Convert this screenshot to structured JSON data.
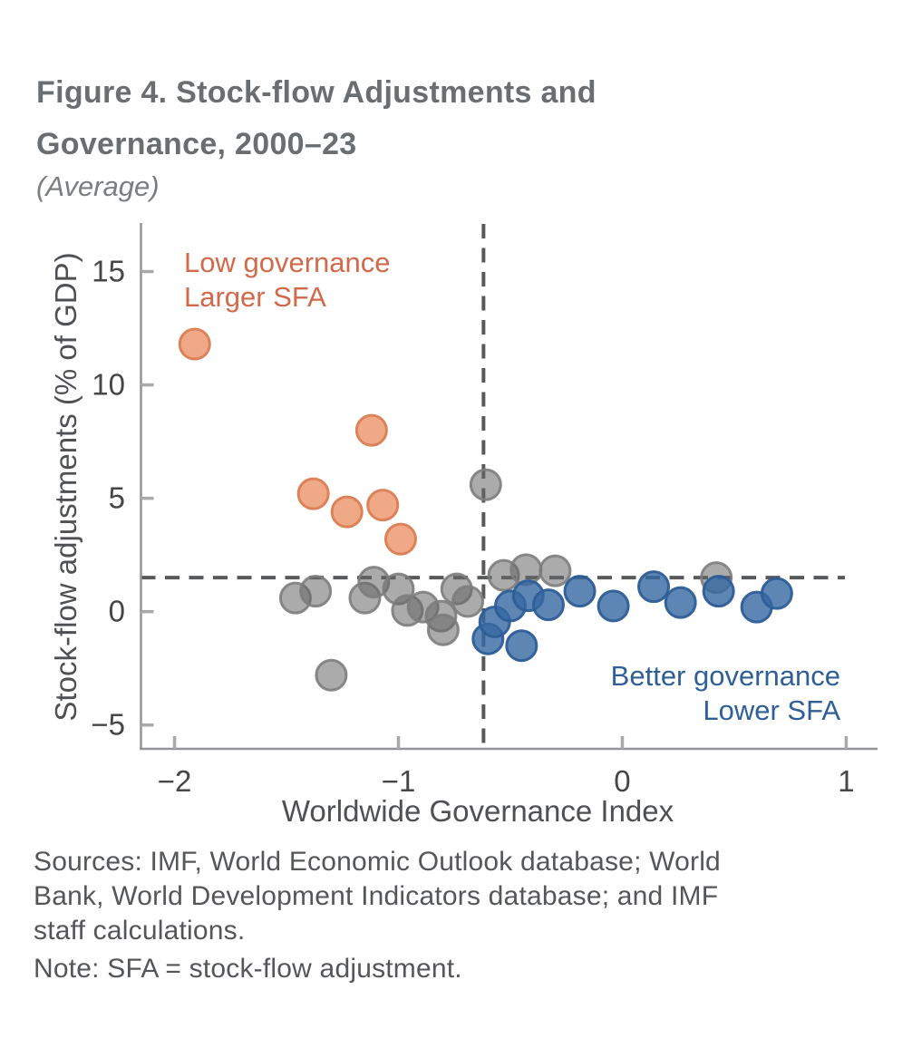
{
  "page": {
    "title_lines": [
      "Figure 4. Stock-flow Adjustments and",
      "Governance, 2000–23"
    ],
    "subtitle": "(Average)",
    "sources": "Sources: IMF, World Economic Outlook database; World Bank, World Development Indicators database; and IMF staff calculations.",
    "note": "Note: SFA = stock-flow adjustment."
  },
  "chart_data": {
    "type": "scatter",
    "title": "Figure 4. Stock-flow Adjustments and Governance, 2000–23",
    "subtitle": "(Average)",
    "xlabel": "Worldwide Governance Index",
    "ylabel": "Stock-flow adjustments (% of GDP)",
    "xlim": [
      -2.15,
      1.14
    ],
    "ylim": [
      -6.05,
      17.1
    ],
    "x_ticks": [
      -2,
      -1,
      0,
      1
    ],
    "y_ticks": [
      15,
      10,
      5,
      0,
      -5
    ],
    "grid": false,
    "reference_lines": {
      "vertical_x": -0.62,
      "horizontal_y": 1.5
    },
    "annotations": [
      {
        "name": "low-governance-label",
        "lines": [
          "Low governance",
          "Larger SFA"
        ],
        "color": "#d2694a"
      },
      {
        "name": "better-governance-label",
        "lines": [
          "Better governance",
          "Lower SFA"
        ],
        "color": "#2f5f97"
      }
    ],
    "series": [
      {
        "name": "neutral-gray",
        "fill": "#666666",
        "stroke": "#7d7d7d",
        "fill_opacity": 0.55,
        "stroke_opacity": 0.9,
        "points": [
          [
            -1.46,
            0.6
          ],
          [
            -1.37,
            0.9
          ],
          [
            -1.3,
            -2.8
          ],
          [
            -1.15,
            0.6
          ],
          [
            -1.11,
            1.3
          ],
          [
            -1.0,
            1.0
          ],
          [
            -0.96,
            0.05
          ],
          [
            -0.89,
            0.2
          ],
          [
            -0.81,
            -0.2
          ],
          [
            -0.8,
            -0.8
          ],
          [
            -0.74,
            1.0
          ],
          [
            -0.69,
            0.45
          ],
          [
            -0.61,
            5.6
          ],
          [
            -0.53,
            1.6
          ],
          [
            -0.43,
            1.85
          ],
          [
            -0.3,
            1.8
          ],
          [
            0.42,
            1.5
          ]
        ]
      },
      {
        "name": "low-governance-orange",
        "fill": "#efa27d",
        "stroke": "#dd8258",
        "fill_opacity": 0.93,
        "stroke_opacity": 1,
        "points": [
          [
            -1.91,
            11.8
          ],
          [
            -1.38,
            5.2
          ],
          [
            -1.23,
            4.4
          ],
          [
            -1.12,
            8.0
          ],
          [
            -1.07,
            4.7
          ],
          [
            -0.99,
            3.2
          ]
        ]
      },
      {
        "name": "better-governance-blue",
        "fill": "#3668a3",
        "stroke": "#2d5e97",
        "fill_opacity": 0.8,
        "stroke_opacity": 0.95,
        "points": [
          [
            -0.6,
            -1.2
          ],
          [
            -0.57,
            -0.45
          ],
          [
            -0.5,
            0.25
          ],
          [
            -0.45,
            -1.5
          ],
          [
            -0.42,
            0.7
          ],
          [
            -0.33,
            0.3
          ],
          [
            -0.19,
            0.9
          ],
          [
            -0.04,
            0.25
          ],
          [
            0.14,
            1.1
          ],
          [
            0.26,
            0.4
          ],
          [
            0.43,
            0.9
          ],
          [
            0.6,
            0.2
          ],
          [
            0.69,
            0.8
          ]
        ]
      }
    ]
  }
}
